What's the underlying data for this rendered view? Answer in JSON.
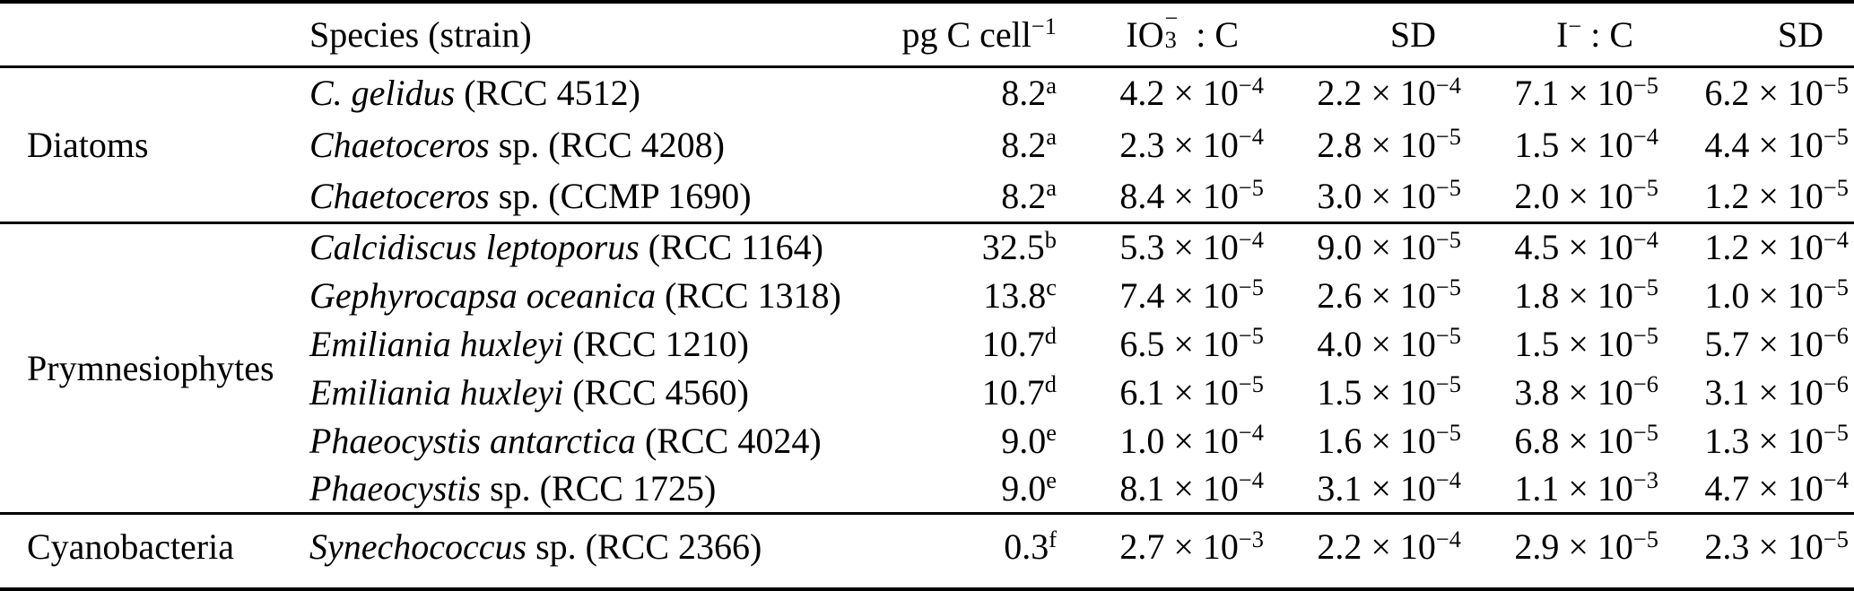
{
  "notation": {
    "times": "×",
    "base": "10"
  },
  "header": {
    "species": "Species (strain)",
    "pgc_base": "pg C cell",
    "pgc_sup": "−1",
    "io3_base": "IO",
    "io3_sub": "3",
    "io3_sup": "−",
    "i_base": "I",
    "i_sup": "−",
    "ratio_c": " : C",
    "sd1": "SD",
    "sd2": "SD"
  },
  "groups": [
    {
      "name": "Diatoms",
      "rows": [
        {
          "sp_it": "C. gelidus",
          "sp_ro": "(RCC 4512)",
          "pgc": "8.2",
          "note": "a",
          "io3": [
            "4.2",
            "−4"
          ],
          "sd1": [
            "2.2",
            "−4"
          ],
          "ic": [
            "7.1",
            "−5"
          ],
          "sd2": [
            "6.2",
            "−5"
          ]
        },
        {
          "sp_it": "Chaetoceros",
          "sp_ro": "sp. (RCC 4208)",
          "pgc": "8.2",
          "note": "a",
          "io3": [
            "2.3",
            "−4"
          ],
          "sd1": [
            "2.8",
            "−5"
          ],
          "ic": [
            "1.5",
            "−4"
          ],
          "sd2": [
            "4.4",
            "−5"
          ]
        },
        {
          "sp_it": "Chaetoceros",
          "sp_ro": "sp. (CCMP 1690)",
          "pgc": "8.2",
          "note": "a",
          "io3": [
            "8.4",
            "−5"
          ],
          "sd1": [
            "3.0",
            "−5"
          ],
          "ic": [
            "2.0",
            "−5"
          ],
          "sd2": [
            "1.2",
            "−5"
          ]
        }
      ]
    },
    {
      "name": "Prymnesiophytes",
      "rows": [
        {
          "sp_it": "Calcidiscus leptoporus",
          "sp_ro": "(RCC 1164)",
          "pgc": "32.5",
          "note": "b",
          "io3": [
            "5.3",
            "−4"
          ],
          "sd1": [
            "9.0",
            "−5"
          ],
          "ic": [
            "4.5",
            "−4"
          ],
          "sd2": [
            "1.2",
            "−4"
          ]
        },
        {
          "sp_it": "Gephyrocapsa oceanica",
          "sp_ro": "(RCC 1318)",
          "pgc": "13.8",
          "note": "c",
          "io3": [
            "7.4",
            "−5"
          ],
          "sd1": [
            "2.6",
            "−5"
          ],
          "ic": [
            "1.8",
            "−5"
          ],
          "sd2": [
            "1.0",
            "−5"
          ]
        },
        {
          "sp_it": "Emiliania huxleyi",
          "sp_ro": "(RCC 1210)",
          "pgc": "10.7",
          "note": "d",
          "io3": [
            "6.5",
            "−5"
          ],
          "sd1": [
            "4.0",
            "−5"
          ],
          "ic": [
            "1.5",
            "−5"
          ],
          "sd2": [
            "5.7",
            "−6"
          ]
        },
        {
          "sp_it": "Emiliania huxleyi",
          "sp_ro": "(RCC 4560)",
          "pgc": "10.7",
          "note": "d",
          "io3": [
            "6.1",
            "−5"
          ],
          "sd1": [
            "1.5",
            "−5"
          ],
          "ic": [
            "3.8",
            "−6"
          ],
          "sd2": [
            "3.1",
            "−6"
          ]
        },
        {
          "sp_it": "Phaeocystis antarctica",
          "sp_ro": "(RCC 4024)",
          "pgc": "9.0",
          "note": "e",
          "io3": [
            "1.0",
            "−4"
          ],
          "sd1": [
            "1.6",
            "−5"
          ],
          "ic": [
            "6.8",
            "−5"
          ],
          "sd2": [
            "1.3",
            "−5"
          ]
        },
        {
          "sp_it": "Phaeocystis",
          "sp_ro": "sp. (RCC 1725)",
          "pgc": "9.0",
          "note": "e",
          "io3": [
            "8.1",
            "−4"
          ],
          "sd1": [
            "3.1",
            "−4"
          ],
          "ic": [
            "1.1",
            "−3"
          ],
          "sd2": [
            "4.7",
            "−4"
          ]
        }
      ]
    },
    {
      "name": "Cyanobacteria",
      "rows": [
        {
          "sp_it": "Synechococcus",
          "sp_ro": "sp. (RCC 2366)",
          "pgc": "0.3",
          "note": "f",
          "io3": [
            "2.7",
            "−3"
          ],
          "sd1": [
            "2.2",
            "−4"
          ],
          "ic": [
            "2.9",
            "−5"
          ],
          "sd2": [
            "2.3",
            "−5"
          ]
        }
      ]
    }
  ]
}
